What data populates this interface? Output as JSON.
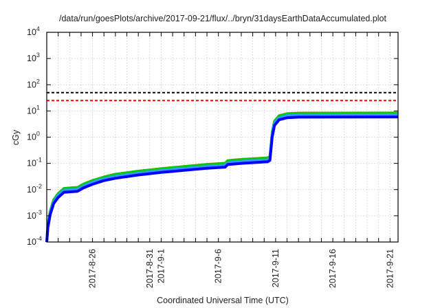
{
  "chart_data": {
    "type": "line",
    "title": "/data/run/goesPlots/archive/2017-09-21/flux/../bryn/31daysEarthDataAccumulated.plot",
    "xlabel": "Coordinated Universal Time (UTC)",
    "ylabel": "cGy",
    "x_units": "days since 2017-08-22 00:00 UTC",
    "xlim": [
      0,
      30.7
    ],
    "ylim": [
      0.0001,
      10000
    ],
    "yscale": "log",
    "grid": true,
    "xticks": [
      {
        "value": 4,
        "label": "2017-8-26"
      },
      {
        "value": 9,
        "label": "2017-8-31"
      },
      {
        "value": 10,
        "label": "2017-9-1"
      },
      {
        "value": 15,
        "label": "2017-9-6"
      },
      {
        "value": 20,
        "label": "2017-9-11"
      },
      {
        "value": 25,
        "label": "2017-9-16"
      },
      {
        "value": 30,
        "label": "2017-9-21"
      }
    ],
    "yticks": [
      {
        "value": 0.0001,
        "base": "10",
        "exp": "-4"
      },
      {
        "value": 0.001,
        "base": "10",
        "exp": "-3"
      },
      {
        "value": 0.01,
        "base": "10",
        "exp": "-2"
      },
      {
        "value": 0.1,
        "base": "10",
        "exp": "-1"
      },
      {
        "value": 1,
        "base": "10",
        "exp": "0"
      },
      {
        "value": 10,
        "base": "10",
        "exp": "1"
      },
      {
        "value": 100,
        "base": "10",
        "exp": "2"
      },
      {
        "value": 1000,
        "base": "10",
        "exp": "3"
      },
      {
        "value": 10000,
        "base": "10",
        "exp": "4"
      }
    ],
    "thresholds": [
      {
        "name": "threshold-black",
        "value": 50,
        "color": "#000000"
      },
      {
        "name": "threshold-red",
        "value": 25,
        "color": "#ff0000"
      }
    ],
    "x": [
      0,
      0.1,
      0.3,
      0.6,
      1,
      1.5,
      2.7,
      3.2,
      4,
      5,
      6,
      8,
      10,
      12,
      14,
      15.6,
      15.8,
      17,
      19.3,
      19.5,
      19.7,
      19.9,
      20.3,
      21,
      22,
      30.7
    ],
    "series": [
      {
        "name": "red",
        "color": "#ff3333",
        "width": 3,
        "values": [
          0.0001,
          0.00052,
          0.00156,
          0.0042,
          0.0073,
          0.0114,
          0.0125,
          0.0166,
          0.0229,
          0.031,
          0.0395,
          0.052,
          0.0645,
          0.078,
          0.094,
          0.104,
          0.13,
          0.146,
          0.166,
          0.187,
          1.56,
          4.2,
          6.8,
          8.1,
          8.5,
          8.6
        ]
      },
      {
        "name": "green",
        "color": "#00cc00",
        "width": 4,
        "values": [
          0.0001,
          0.0005,
          0.0015,
          0.004,
          0.007,
          0.011,
          0.012,
          0.016,
          0.022,
          0.03,
          0.038,
          0.05,
          0.062,
          0.075,
          0.09,
          0.1,
          0.125,
          0.14,
          0.16,
          0.18,
          1.5,
          4,
          6.5,
          7.8,
          8.2,
          8.3
        ]
      },
      {
        "name": "light-blue",
        "color": "#3399ff",
        "width": 4,
        "values": [
          0.0001,
          0.00042,
          0.0013,
          0.0034,
          0.006,
          0.0094,
          0.0102,
          0.0136,
          0.019,
          0.0255,
          0.032,
          0.0425,
          0.053,
          0.064,
          0.076,
          0.085,
          0.106,
          0.12,
          0.136,
          0.153,
          1.3,
          3.4,
          5.5,
          6.6,
          7,
          7.1
        ]
      },
      {
        "name": "blue",
        "color": "#0000ff",
        "width": 4,
        "values": [
          0.0001,
          0.00036,
          0.0011,
          0.0029,
          0.005,
          0.0079,
          0.0086,
          0.0115,
          0.016,
          0.022,
          0.027,
          0.036,
          0.045,
          0.054,
          0.065,
          0.072,
          0.09,
          0.1,
          0.115,
          0.13,
          1.0,
          2.8,
          4.6,
          5.5,
          5.8,
          5.9
        ]
      }
    ]
  }
}
